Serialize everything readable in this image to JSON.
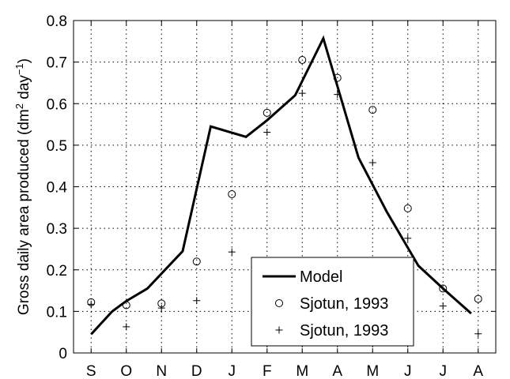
{
  "chart_data": {
    "type": "line",
    "title": "",
    "xlabel": "",
    "ylabel": "Gross daily area produced (dm² day⁻¹)",
    "ylabel_parts": {
      "main": "Gross daily area produced (dm",
      "sup1": "2",
      "mid": " day",
      "sup2": "−1",
      "end": ")"
    },
    "categories": [
      "S",
      "O",
      "N",
      "D",
      "J",
      "F",
      "M",
      "A",
      "M",
      "J",
      "J",
      "A"
    ],
    "ylim": [
      0,
      0.8
    ],
    "yticks": [
      0,
      0.1,
      0.2,
      0.3,
      0.4,
      0.5,
      0.6,
      0.7,
      0.8
    ],
    "ytick_labels": [
      "0",
      "0.1",
      "0.2",
      "0.3",
      "0.4",
      "0.5",
      "0.6",
      "0.7",
      "0.8"
    ],
    "grid": true,
    "legend_position": "bottom-right",
    "series": [
      {
        "name": "Model",
        "style": "line",
        "color": "#000000",
        "x": [
          0.0,
          0.6,
          1.0,
          1.6,
          2.6,
          3.4,
          4.4,
          5.0,
          5.8,
          6.6,
          7.6,
          8.4,
          9.3,
          10.0,
          10.8
        ],
        "y": [
          0.045,
          0.1,
          0.125,
          0.155,
          0.245,
          0.545,
          0.52,
          0.56,
          0.62,
          0.757,
          0.47,
          0.34,
          0.21,
          0.155,
          0.095
        ]
      },
      {
        "name": "Sjotun, 1993",
        "style": "circle",
        "color": "#000000",
        "x": [
          0.0,
          1.0,
          2.0,
          3.0,
          4.0,
          5.0,
          6.0,
          7.0,
          8.0,
          9.0,
          10.0,
          11.0
        ],
        "y": [
          0.122,
          0.115,
          0.119,
          0.22,
          0.382,
          0.578,
          0.705,
          0.662,
          0.585,
          0.348,
          0.155,
          0.13
        ]
      },
      {
        "name": "Sjotun, 1993",
        "style": "plus",
        "color": "#000000",
        "x": [
          0.0,
          1.0,
          2.0,
          3.0,
          4.0,
          5.0,
          6.0,
          7.0,
          8.0,
          9.0,
          10.0,
          11.0
        ],
        "y": [
          0.117,
          0.063,
          0.108,
          0.126,
          0.243,
          0.531,
          0.625,
          0.622,
          0.458,
          0.276,
          0.113,
          0.046
        ]
      }
    ]
  }
}
